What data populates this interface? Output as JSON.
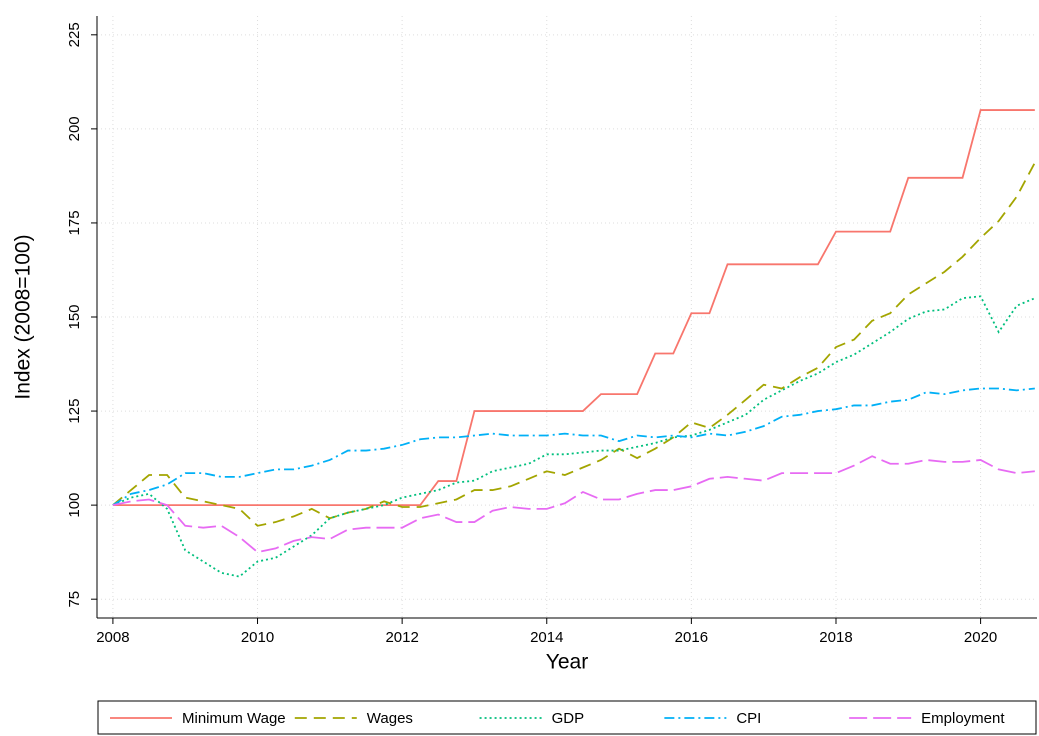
{
  "chart_data": {
    "type": "line",
    "x_label": "Year",
    "y_label": "Index (2008=100)",
    "x": [
      2008,
      2008.25,
      2008.5,
      2008.75,
      2009,
      2009.25,
      2009.5,
      2009.75,
      2010,
      2010.25,
      2010.5,
      2010.75,
      2011,
      2011.25,
      2011.5,
      2011.75,
      2012,
      2012.25,
      2012.5,
      2012.75,
      2013,
      2013.25,
      2013.5,
      2013.75,
      2014,
      2014.25,
      2014.5,
      2014.75,
      2015,
      2015.25,
      2015.5,
      2015.75,
      2016,
      2016.25,
      2016.5,
      2016.75,
      2017,
      2017.25,
      2017.5,
      2017.75,
      2018,
      2018.25,
      2018.5,
      2018.75,
      2019,
      2019.25,
      2019.5,
      2019.75,
      2020,
      2020.25,
      2020.5,
      2020.75
    ],
    "series": [
      {
        "name": "Minimum Wage",
        "color": "#f8766d",
        "dash": "solid",
        "values": [
          100,
          100,
          100,
          100,
          100,
          100,
          100,
          100,
          100,
          100,
          100,
          100,
          100,
          100,
          100,
          100,
          100,
          100,
          106.4,
          106.4,
          125,
          125,
          125,
          125,
          125,
          125,
          125,
          129.5,
          129.5,
          129.5,
          140.3,
          140.3,
          151,
          151,
          164,
          164,
          164,
          164,
          164,
          164,
          172.7,
          172.7,
          172.7,
          172.7,
          187,
          187,
          187,
          187,
          205,
          205,
          205,
          205
        ]
      },
      {
        "name": "Wages",
        "color": "#a3a500",
        "dash": "dashed",
        "values": [
          100,
          104,
          108,
          108,
          102,
          101,
          100,
          99,
          94.5,
          95.5,
          97,
          99,
          96.5,
          98,
          99,
          101,
          99.5,
          99.5,
          100.5,
          101.5,
          104,
          104,
          105,
          107,
          109,
          108,
          110,
          112,
          115,
          112.5,
          115,
          118,
          122,
          120.5,
          124,
          128,
          132,
          131,
          134,
          136.5,
          142,
          144,
          149,
          151,
          156,
          159,
          162,
          166,
          171,
          175.5,
          182,
          191
        ]
      },
      {
        "name": "GDP",
        "color": "#00bf7d",
        "dash": "dotted",
        "values": [
          100,
          102,
          103,
          99,
          88,
          85,
          82,
          81,
          85,
          86,
          89,
          92,
          96.5,
          98,
          99,
          100,
          102,
          103,
          104,
          106,
          106.5,
          109,
          110,
          111,
          113.5,
          113.5,
          114,
          114.5,
          114.5,
          115.5,
          116.5,
          118,
          118.5,
          120,
          122,
          124,
          128,
          130.5,
          133,
          135,
          138,
          140,
          143,
          146,
          149.5,
          151.5,
          152,
          155,
          155.5,
          146,
          153,
          155
        ]
      },
      {
        "name": "CPI",
        "color": "#00b0f6",
        "dash": "dashdot",
        "values": [
          100,
          103,
          104,
          105.5,
          108.5,
          108.5,
          107.5,
          107.5,
          108.5,
          109.5,
          109.5,
          110.5,
          112,
          114.5,
          114.5,
          115,
          116,
          117.5,
          118,
          118,
          118.5,
          119,
          118.5,
          118.5,
          118.5,
          119,
          118.5,
          118.5,
          117,
          118.5,
          118,
          118.5,
          118,
          119,
          118.5,
          119.5,
          121,
          123.5,
          124,
          125,
          125.5,
          126.5,
          126.5,
          127.5,
          128,
          130,
          129.5,
          130.5,
          131,
          131,
          130.5,
          131
        ]
      },
      {
        "name": "Employment",
        "color": "#e76bf3",
        "dash": "longdash",
        "values": [
          100,
          101,
          101.5,
          100,
          94.5,
          94,
          94.5,
          91.5,
          87.5,
          88.5,
          90.5,
          91.5,
          91,
          93.5,
          94,
          94,
          94,
          96.5,
          97.5,
          95.5,
          95.5,
          98.5,
          99.5,
          99,
          99,
          100.5,
          103.5,
          101.5,
          101.5,
          103,
          104,
          104,
          105,
          107,
          107.5,
          107,
          106.5,
          108.5,
          108.5,
          108.5,
          108.5,
          110.5,
          113,
          111,
          111,
          112,
          111.5,
          111.5,
          112,
          109.5,
          108.5,
          109
        ]
      }
    ],
    "xlim": [
      2007.78,
      2020.78
    ],
    "ylim": [
      70,
      230
    ],
    "xticks": [
      2008,
      2010,
      2012,
      2014,
      2016,
      2018,
      2020
    ],
    "yticks": [
      75,
      100,
      125,
      150,
      175,
      200,
      225
    ],
    "grid": true,
    "legend": "bottom"
  }
}
